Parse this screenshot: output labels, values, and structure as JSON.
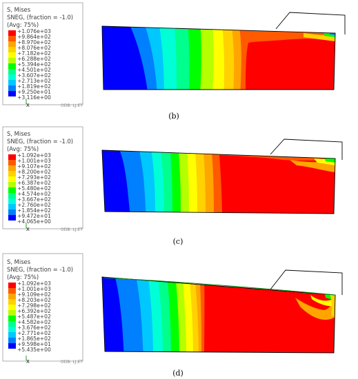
{
  "panels": [
    {
      "caption": "(b)",
      "header": [
        "S, Mises",
        "SNEG, (fraction = -1.0)",
        "(Avg: 75%)"
      ],
      "legend": [
        "+1.076e+03",
        "+9.864e+02",
        "+8.970e+02",
        "+8.076e+02",
        "+7.182e+02",
        "+6.288e+02",
        "+5.394e+02",
        "+4.501e+02",
        "+3.607e+02",
        "+2.713e+02",
        "+1.819e+02",
        "+9.250e+01",
        "+3.116e+00"
      ]
    },
    {
      "caption": "(c)",
      "header": [
        "S, Mises",
        "SNEG, (fraction = -1.0)",
        "(Avg: 75%)"
      ],
      "legend": [
        "+1.092e+03",
        "+1.001e+03",
        "+9.107e+02",
        "+8.200e+02",
        "+7.293e+02",
        "+6.387e+02",
        "+5.480e+02",
        "+4.574e+02",
        "+3.667e+02",
        "+2.760e+02",
        "+1.854e+02",
        "+9.472e+01",
        "+4.065e+00"
      ]
    },
    {
      "caption": "(d)",
      "header": [
        "S, Mises",
        "SNEG, (fraction = -1.0)",
        "(Avg: 75%)"
      ],
      "legend": [
        "+1.092e+03",
        "+1.001e+03",
        "+9.109e+02",
        "+8.203e+02",
        "+7.298e+02",
        "+6.392e+02",
        "+5.487e+02",
        "+4.582e+02",
        "+3.676e+02",
        "+2.771e+02",
        "+1.865e+02",
        "+9.598e+01",
        "+5.435e+00"
      ]
    }
  ],
  "colors": [
    "#ff0000",
    "#ff5a00",
    "#ffa500",
    "#ffd200",
    "#ffff00",
    "#b4ff00",
    "#00ff00",
    "#00ff8c",
    "#00ffd7",
    "#00c8ff",
    "#0080ff",
    "#0000ff"
  ],
  "mesh_outline": "#000000",
  "cut_label": "ODB: LJ.ET"
}
